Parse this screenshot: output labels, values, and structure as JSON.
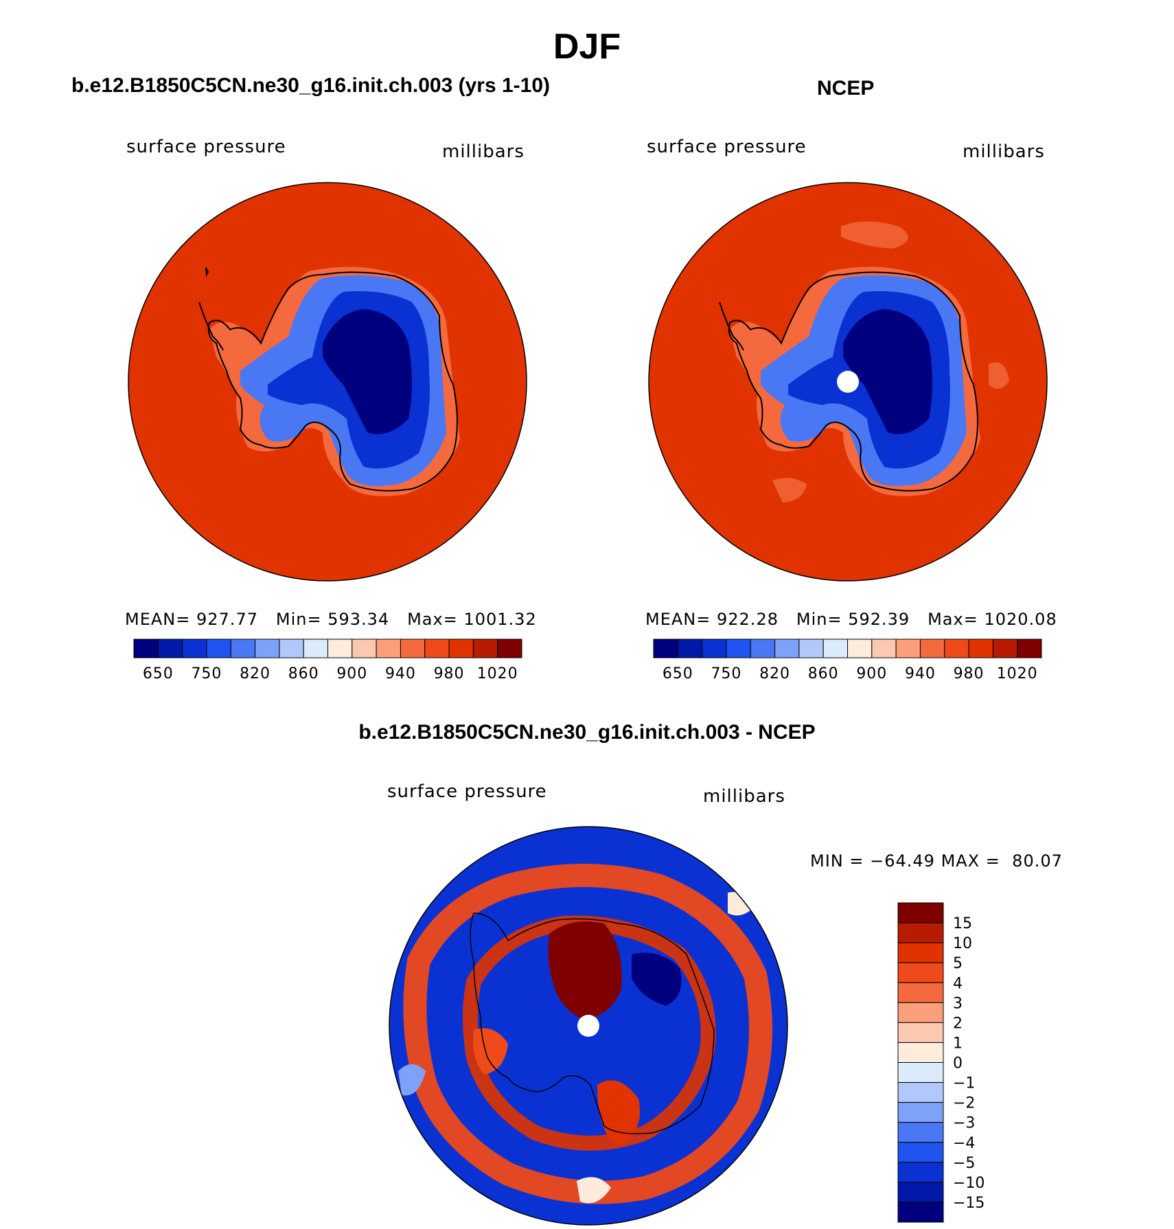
{
  "figure": {
    "title": "DJF",
    "model_label": "b.e12.B1850C5CN.ne30_g16.init.ch.003 (yrs 1-10)",
    "obs_label": "NCEP",
    "diff_label": "b.e12.B1850C5CN.ne30_g16.init.ch.003 - NCEP"
  },
  "panels": {
    "model": {
      "variable": "surface pressure",
      "units": "millibars",
      "stats": {
        "mean_label": "MEAN=",
        "mean": "927.77",
        "min_label": "Min=",
        "min": "593.34",
        "max_label": "Max=",
        "max": "1001.32"
      }
    },
    "obs": {
      "variable": "surface pressure",
      "units": "millibars",
      "stats": {
        "mean_label": "MEAN=",
        "mean": "922.28",
        "min_label": "Min=",
        "min": "592.39",
        "max_label": "Max=",
        "max": "1020.08"
      }
    },
    "diff": {
      "variable": "surface pressure",
      "units": "millibars",
      "min_label": "MIN =",
      "min": "−64.49",
      "max_label": "MAX =",
      "max": "80.07"
    }
  },
  "colorbars": {
    "abs": {
      "colors": [
        "#00007f",
        "#0019a8",
        "#0a32d2",
        "#2054f0",
        "#4a78f5",
        "#7ea2f7",
        "#b2c8fa",
        "#dcebfc",
        "#fdebdc",
        "#fdc8b0",
        "#fb9f7b",
        "#f46a3e",
        "#ee4a1a",
        "#e03300",
        "#b81c00",
        "#7f0000"
      ],
      "labels": [
        "650",
        "750",
        "820",
        "860",
        "900",
        "940",
        "980",
        "1020"
      ]
    },
    "diff": {
      "colors": [
        "#00007f",
        "#0019a8",
        "#0a32d2",
        "#2054f0",
        "#4a78f5",
        "#7ea2f7",
        "#b2c8fa",
        "#dcebfc",
        "#fdebdc",
        "#fdc8b0",
        "#fb9f7b",
        "#f46a3e",
        "#ee4a1a",
        "#e03300",
        "#b81c00",
        "#7f0000"
      ],
      "labels": [
        "15",
        "10",
        "5",
        "4",
        "3",
        "2",
        "1",
        "0",
        "−1",
        "−2",
        "−3",
        "−4",
        "−5",
        "−10",
        "−15"
      ]
    }
  },
  "map_colors": {
    "ocean": "#e03300",
    "land_high": "#00007f",
    "land_mid": "#0a32d2",
    "land_low": "#4a78f5",
    "coast_band": "#f46a3e",
    "pole_hole": "#ffffff",
    "outline": "#000000"
  }
}
